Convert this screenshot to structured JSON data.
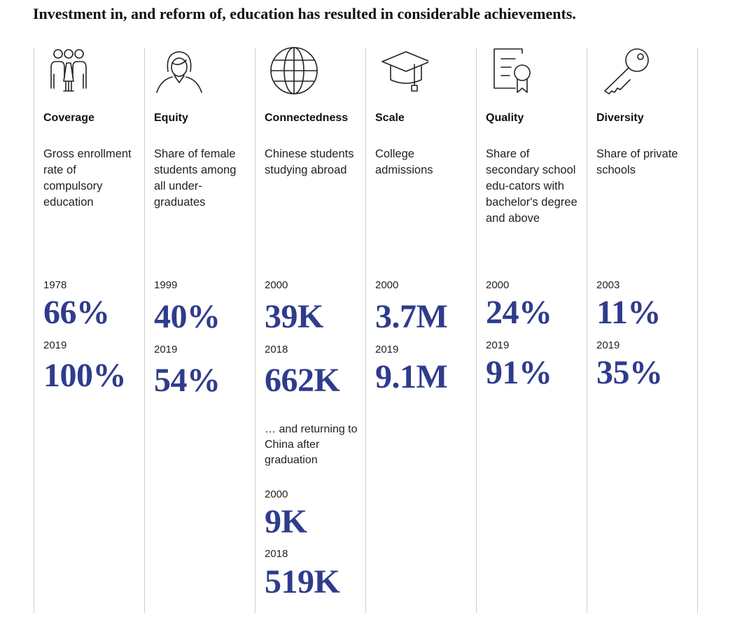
{
  "title": "Investment in, and reform of, education has resulted in considerable achievements.",
  "accent_color": "#2f3c8c",
  "columns": [
    {
      "icon": "people-group-icon",
      "heading": "Coverage",
      "description": "Gross enrollment rate of compulsory education",
      "year1": "1978",
      "value1": "66%",
      "year2": "2019",
      "value2": "100%"
    },
    {
      "icon": "female-student-icon",
      "heading": "Equity",
      "description": "Share of female students among all under-graduates",
      "year1": "1999",
      "value1": "40%",
      "year2": "2019",
      "value2": "54%"
    },
    {
      "icon": "globe-icon",
      "heading": "Connectedness",
      "description": "Chinese students studying abroad",
      "year1": "2000",
      "value1": "39K",
      "year2": "2018",
      "value2": "662K",
      "note": "… and returning to China after graduation",
      "year3": "2000",
      "value3": "9K",
      "year4": "2018",
      "value4": "519K"
    },
    {
      "icon": "graduation-cap-icon",
      "heading": "Scale",
      "description": "College admissions",
      "year1": "2000",
      "value1": "3.7M",
      "year2": "2019",
      "value2": "9.1M"
    },
    {
      "icon": "certificate-icon",
      "heading": "Quality",
      "description": "Share of secondary school edu-cators with bachelor's degree and above",
      "year1": "2000",
      "value1": "24%",
      "year2": "2019",
      "value2": "91%"
    },
    {
      "icon": "key-icon",
      "heading": "Diversity",
      "description": "Share of private schools",
      "year1": "2003",
      "value1": "11%",
      "year2": "2019",
      "value2": "35%"
    }
  ]
}
